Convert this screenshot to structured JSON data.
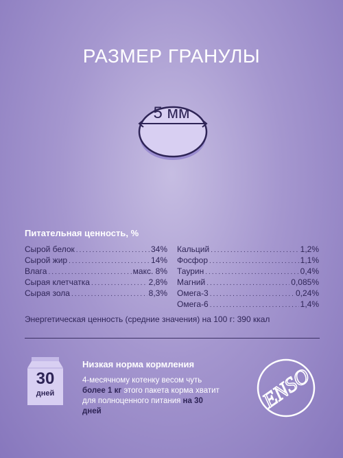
{
  "header": {
    "title": "РАЗМЕР ГРАНУЛЫ"
  },
  "granule": {
    "size_label": "5 мм"
  },
  "nutrition": {
    "title": "Питательная ценность, %",
    "left": [
      {
        "name": "Сырой белок",
        "value": "34%"
      },
      {
        "name": "Сырой жир",
        "value": "14%"
      },
      {
        "name": "Влага",
        "value": "макс. 8%"
      },
      {
        "name": "Сырая клетчатка",
        "value": "2,8%"
      },
      {
        "name": "Сырая зола",
        "value": "8,3%"
      }
    ],
    "right": [
      {
        "name": "Кальций",
        "value": "1,2%"
      },
      {
        "name": "Фосфор",
        "value": "1,1%"
      },
      {
        "name": "Таурин",
        "value": "0,4%"
      },
      {
        "name": "Магний",
        "value": "0,085%"
      },
      {
        "name": "Омега-3",
        "value": "0,24%"
      },
      {
        "name": "Омега-6",
        "value": "1,4%"
      }
    ],
    "energy": "Энергетическая ценность (средние значения) на 100 г: 390 ккал"
  },
  "feeding": {
    "bag_number": "30",
    "bag_unit": "дней",
    "title": "Низкая норма кормления",
    "text_1": "4-месячному котенку весом чуть ",
    "text_bold_1": "более 1 кг",
    "text_2": " этого пакета корма хватит для полноценного питания ",
    "text_bold_2": "на 30 дней"
  },
  "logo": {
    "text": "ENSO"
  },
  "colors": {
    "accent_dark": "#2e2456",
    "background": "#a597cf",
    "granule_fill": "#d8cff2"
  }
}
